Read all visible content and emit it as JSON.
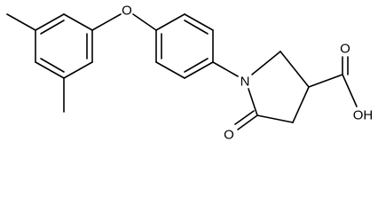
{
  "molecule": {
    "atoms": {
      "ether_oxygen": "O",
      "ring_nitrogen": "N",
      "ketone_oxygen": "O",
      "acid_carbonyl_oxygen": "O",
      "acid_hydroxyl": "OH"
    }
  }
}
